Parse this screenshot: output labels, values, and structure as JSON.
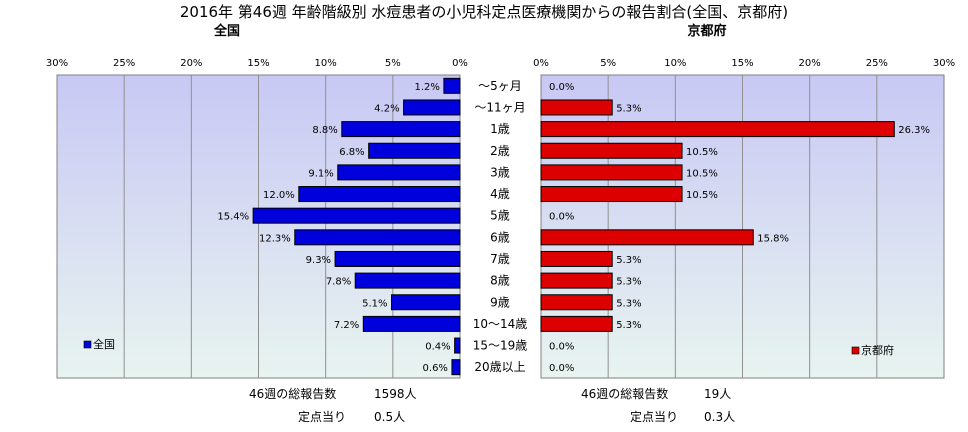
{
  "title": "2016年 第46週 年齢階級別 水痘患者の小児科定点医療機関からの報告割合(全国、京都府)",
  "colors": {
    "plot_bg_top": "#c8c8f4",
    "plot_bg_bottom": "#e8f4f0",
    "left_bar": "#0000dd",
    "right_bar": "#dd0000"
  },
  "chart_data": [
    {
      "type": "bar",
      "orientation": "horizontal",
      "direction": "right-to-left",
      "title": "全国",
      "xlim": [
        0,
        30
      ],
      "xticks": [
        "30%",
        "25%",
        "20%",
        "15%",
        "10%",
        "5%",
        "0%"
      ],
      "grid": true,
      "legend": {
        "entry": "全国",
        "placement": "bottom-left"
      },
      "categories": [
        "〜5ヶ月",
        "〜11ヶ月",
        "1歳",
        "2歳",
        "3歳",
        "4歳",
        "5歳",
        "6歳",
        "7歳",
        "8歳",
        "9歳",
        "10〜14歳",
        "15〜19歳",
        "20歳以上"
      ],
      "values": [
        1.2,
        4.2,
        8.8,
        6.8,
        9.1,
        12.0,
        15.4,
        12.3,
        9.3,
        7.8,
        5.1,
        7.2,
        0.4,
        0.6
      ],
      "labels": [
        "1.2%",
        "4.2%",
        "8.8%",
        "6.8%",
        "9.1%",
        "12.0%",
        "15.4%",
        "12.3%",
        "9.3%",
        "7.8%",
        "5.1%",
        "7.2%",
        "0.4%",
        "0.6%"
      ]
    },
    {
      "type": "bar",
      "orientation": "horizontal",
      "direction": "left-to-right",
      "title": "京都府",
      "xlim": [
        0,
        30
      ],
      "xticks": [
        "0%",
        "5%",
        "10%",
        "15%",
        "20%",
        "25%",
        "30%"
      ],
      "grid": true,
      "legend": {
        "entry": "京都府",
        "placement": "bottom-right"
      },
      "categories": [
        "〜5ヶ月",
        "〜11ヶ月",
        "1歳",
        "2歳",
        "3歳",
        "4歳",
        "5歳",
        "6歳",
        "7歳",
        "8歳",
        "9歳",
        "10〜14歳",
        "15〜19歳",
        "20歳以上"
      ],
      "values": [
        0.0,
        5.3,
        26.3,
        10.5,
        10.5,
        10.5,
        0.0,
        15.8,
        5.3,
        5.3,
        5.3,
        5.3,
        0.0,
        0.0
      ],
      "labels": [
        "0.0%",
        "5.3%",
        "26.3%",
        "10.5%",
        "10.5%",
        "10.5%",
        "0.0%",
        "15.8%",
        "5.3%",
        "5.3%",
        "5.3%",
        "5.3%",
        "0.0%",
        "0.0%"
      ]
    }
  ],
  "footer": {
    "left_total_label": "46週の総報告数",
    "left_total_value": "1598人",
    "left_per_label": "定点当り",
    "left_per_value": "0.5人",
    "right_total_label": "46週の総報告数",
    "right_total_value": "19人",
    "right_per_label": "定点当り",
    "right_per_value": "0.3人"
  }
}
